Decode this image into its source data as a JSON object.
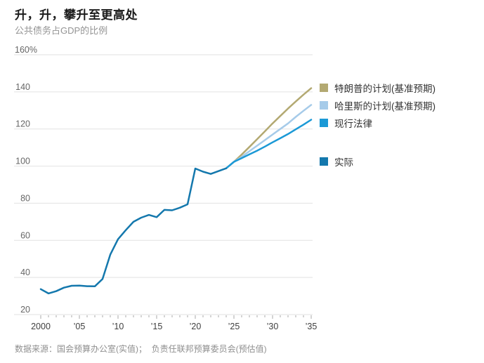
{
  "header": {
    "title": "升，升，攀升至更高处",
    "subtitle": "公共债务占GDP的比例"
  },
  "source_note": "数据来源：国会预算办公室(实值)；  负责任联邦预算委员会(预估值)",
  "colors": {
    "trump": "#b3a972",
    "harris": "#a6cbe9",
    "current_law": "#1b99d6",
    "actual": "#1478ad",
    "gridline": "#e2e2e2",
    "tick": "#a8a8a8"
  },
  "legend": [
    {
      "id": "trump",
      "label": "特朗普的计划(基准预期)",
      "color": "#b3a972",
      "gap_before": false
    },
    {
      "id": "harris",
      "label": "哈里斯的计划(基准预期)",
      "color": "#a6cbe9",
      "gap_before": false
    },
    {
      "id": "current-law",
      "label": "现行法律",
      "color": "#1b99d6",
      "gap_before": false
    },
    {
      "id": "actual",
      "label": "实际",
      "color": "#1478ad",
      "gap_before": true
    }
  ],
  "chart_data": {
    "type": "line",
    "title": "升，升，攀升至更高处",
    "subtitle": "公共债务占GDP的比例",
    "xlabel": "",
    "ylabel": "公共债务占GDP的比例 (%)",
    "x_range": [
      2000,
      2035
    ],
    "y_range": [
      20,
      160
    ],
    "grid": true,
    "legend_position": "right",
    "y_ticks": [
      {
        "value": 20,
        "label": "20"
      },
      {
        "value": 40,
        "label": "40"
      },
      {
        "value": 60,
        "label": "60"
      },
      {
        "value": 80,
        "label": "80"
      },
      {
        "value": 100,
        "label": "100"
      },
      {
        "value": 120,
        "label": "120"
      },
      {
        "value": 140,
        "label": "140"
      },
      {
        "value": 160,
        "label": "160%"
      }
    ],
    "x_labels": [
      {
        "year": 2000,
        "label": "2000"
      },
      {
        "year": 2005,
        "label": "’05"
      },
      {
        "year": 2010,
        "label": "’10"
      },
      {
        "year": 2015,
        "label": "’15"
      },
      {
        "year": 2020,
        "label": "’20"
      },
      {
        "year": 2025,
        "label": "’25"
      },
      {
        "year": 2030,
        "label": "’30"
      },
      {
        "year": 2035,
        "label": "’35"
      }
    ],
    "series": [
      {
        "id": "trump",
        "name": "特朗普的计划(基准预期)",
        "color": "#b3a972",
        "start_year": 2024,
        "values": [
          98.8,
          102.3,
          106.2,
          110.3,
          114.5,
          118.7,
          123.0,
          127.0,
          131.0,
          134.8,
          138.5,
          142.0
        ]
      },
      {
        "id": "harris",
        "name": "哈里斯的计划(基准预期)",
        "color": "#a6cbe9",
        "start_year": 2024,
        "values": [
          98.8,
          102.3,
          105.0,
          108.0,
          111.0,
          114.0,
          117.0,
          120.0,
          123.0,
          126.5,
          129.8,
          133.0
        ]
      },
      {
        "id": "current-law",
        "name": "现行法律",
        "color": "#1b99d6",
        "start_year": 2024,
        "values": [
          98.8,
          102.3,
          104.3,
          106.3,
          108.3,
          110.5,
          112.8,
          115.0,
          117.3,
          119.8,
          122.3,
          125.0
        ]
      },
      {
        "id": "actual",
        "name": "实际",
        "color": "#1478ad",
        "start_year": 2000,
        "values": [
          33.7,
          31.4,
          32.6,
          34.5,
          35.5,
          35.6,
          35.3,
          35.2,
          39.2,
          52.3,
          60.6,
          65.5,
          70.0,
          72.2,
          73.7,
          72.5,
          76.4,
          76.2,
          77.6,
          79.4,
          98.7,
          97.0,
          95.8,
          97.3,
          98.8
        ]
      }
    ]
  }
}
